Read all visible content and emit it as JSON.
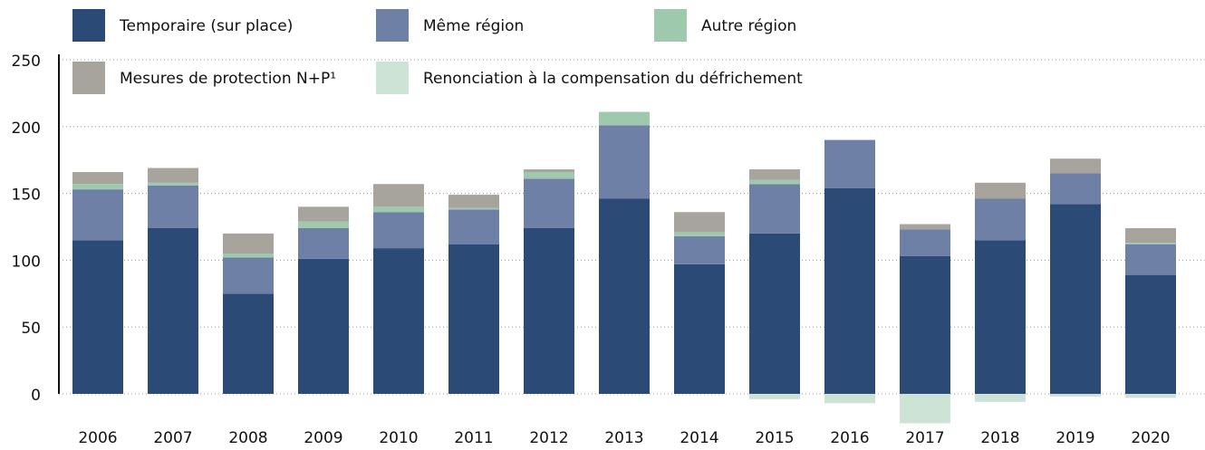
{
  "chart_data": {
    "type": "stacked_bar",
    "categories": [
      "2006",
      "2007",
      "2008",
      "2009",
      "2010",
      "2011",
      "2012",
      "2013",
      "2014",
      "2015",
      "2016",
      "2017",
      "2018",
      "2019",
      "2020"
    ],
    "series": [
      {
        "name": "Temporaire (sur place)",
        "color": "#2b4a75",
        "values": [
          115,
          124,
          75,
          101,
          109,
          112,
          124,
          146,
          97,
          120,
          154,
          103,
          115,
          142,
          89
        ]
      },
      {
        "name": "Même région",
        "color": "#6e80a6",
        "values": [
          38,
          32,
          27,
          23,
          27,
          26,
          37,
          55,
          21,
          37,
          36,
          20,
          31,
          23,
          23
        ]
      },
      {
        "name": "Autre région",
        "color": "#9fc9ad",
        "values": [
          4,
          2,
          3,
          5,
          4,
          1,
          5,
          10,
          3,
          3,
          null,
          null,
          null,
          null,
          1
        ]
      },
      {
        "name": "Mesures de protection N+P¹",
        "color": "#a7a39d",
        "values": [
          9,
          11,
          15,
          11,
          17,
          10,
          2,
          null,
          15,
          8,
          null,
          4,
          12,
          11,
          11
        ]
      },
      {
        "name": "Renonciation à la compensation du défrichement",
        "color": "#cde3d6",
        "values": [
          null,
          null,
          null,
          null,
          null,
          null,
          null,
          null,
          null,
          -4,
          -7,
          -22,
          -6,
          -2,
          -3
        ]
      }
    ],
    "ylim": [
      -25,
      250
    ],
    "yticks": [
      0,
      50,
      100,
      150,
      200,
      250
    ],
    "grid": true
  }
}
